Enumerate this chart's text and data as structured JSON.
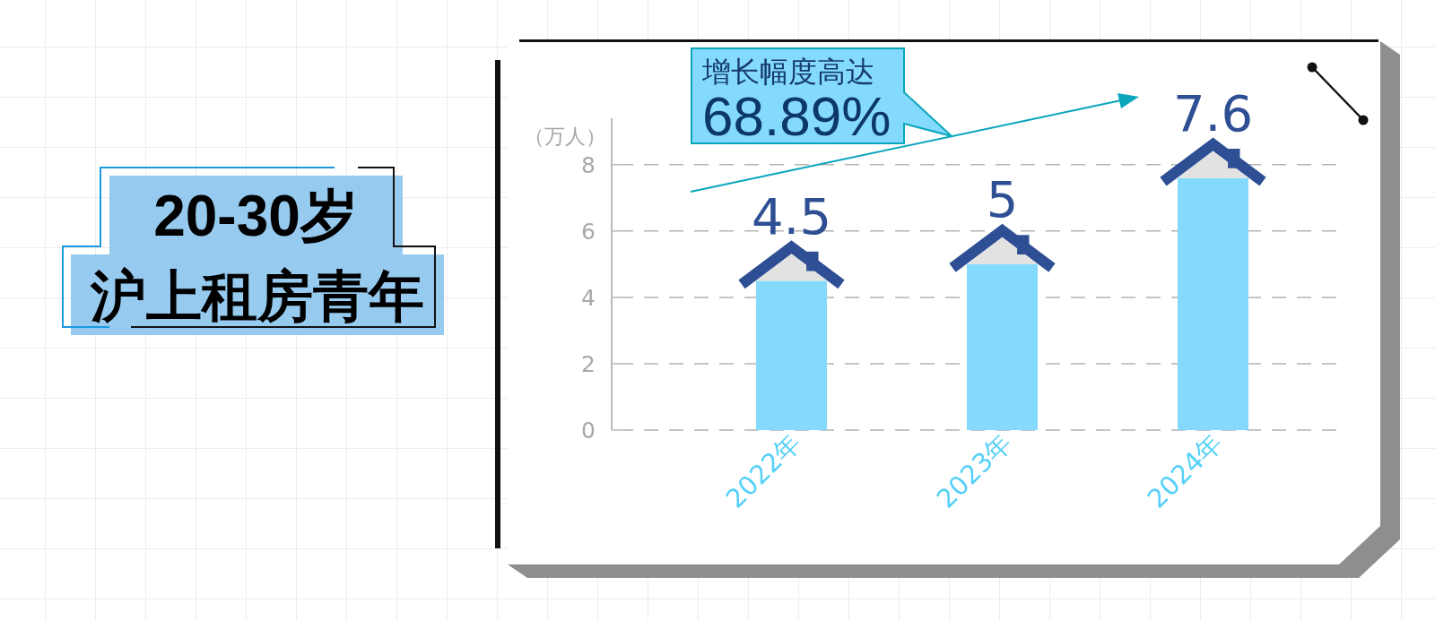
{
  "chart_data": {
    "type": "bar",
    "title": "20-30岁",
    "subtitle": "沪上租房青年",
    "ylabel": "（万人）",
    "categories": [
      "2022年",
      "2023年",
      "2024年"
    ],
    "values": [
      4.5,
      5,
      7.6
    ],
    "color": "#84dafc",
    "data_labels": true,
    "ylim": [
      0,
      9.4
    ],
    "yticks": [
      0,
      2,
      4,
      6,
      8
    ],
    "grid": "y",
    "annotations": [
      "增长幅度高达",
      "68.89%"
    ]
  }
}
